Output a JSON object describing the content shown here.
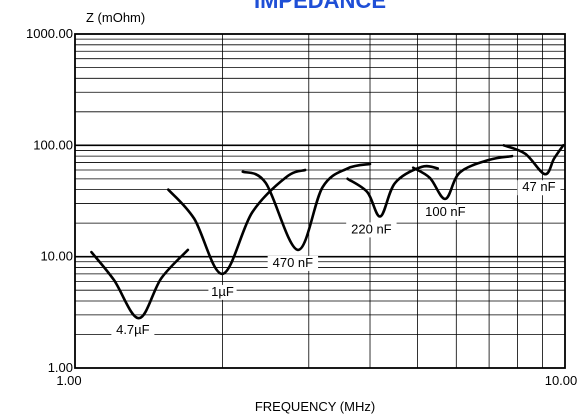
{
  "chart_data": {
    "type": "line",
    "title": "IMPEDANCE",
    "xlabel": "FREQUENCY (MHz)",
    "ylabel": "Z (mOhm)",
    "x_scale": "log",
    "y_scale": "log",
    "xlim": [
      1,
      10
    ],
    "ylim": [
      1,
      1000
    ],
    "x_ticks": [
      "1.00",
      "10.00"
    ],
    "y_ticks": [
      "1.00",
      "10.00",
      "100.00",
      "1000.00"
    ],
    "grid": true,
    "colors": {
      "title": "#1f4fd6",
      "line": "#000000",
      "grid": "#000000"
    },
    "series": [
      {
        "label": "4.7µF",
        "resonance": [
          1.35,
          2.8
        ],
        "points": [
          [
            1.08,
            11
          ],
          [
            1.2,
            6.2
          ],
          [
            1.35,
            2.8
          ],
          [
            1.5,
            6.4
          ],
          [
            1.7,
            11.5
          ]
        ]
      },
      {
        "label": "1µF",
        "resonance": [
          2.0,
          7.0
        ],
        "points": [
          [
            1.55,
            40
          ],
          [
            1.75,
            22
          ],
          [
            2.0,
            7.0
          ],
          [
            2.3,
            25
          ],
          [
            2.7,
            52
          ],
          [
            2.95,
            60
          ]
        ]
      },
      {
        "label": "470 nF",
        "resonance": [
          2.85,
          11.5
        ],
        "points": [
          [
            2.2,
            58
          ],
          [
            2.45,
            46
          ],
          [
            2.85,
            11.5
          ],
          [
            3.2,
            42
          ],
          [
            3.6,
            62
          ],
          [
            4.0,
            68
          ]
        ]
      },
      {
        "label": "220 nF",
        "resonance": [
          4.2,
          23
        ],
        "points": [
          [
            3.6,
            50
          ],
          [
            3.95,
            38
          ],
          [
            4.2,
            23
          ],
          [
            4.5,
            46
          ],
          [
            5.1,
            64
          ],
          [
            5.5,
            62
          ]
        ]
      },
      {
        "label": "100 nF",
        "resonance": [
          5.7,
          33
        ],
        "points": [
          [
            4.9,
            63
          ],
          [
            5.3,
            51
          ],
          [
            5.7,
            33
          ],
          [
            6.1,
            57
          ],
          [
            7.0,
            74
          ],
          [
            7.8,
            80
          ]
        ]
      },
      {
        "label": "47 nF",
        "resonance": [
          9.1,
          55
        ],
        "points": [
          [
            7.5,
            100
          ],
          [
            8.3,
            84
          ],
          [
            9.1,
            55
          ],
          [
            9.5,
            76
          ],
          [
            9.92,
            100
          ]
        ]
      }
    ]
  }
}
